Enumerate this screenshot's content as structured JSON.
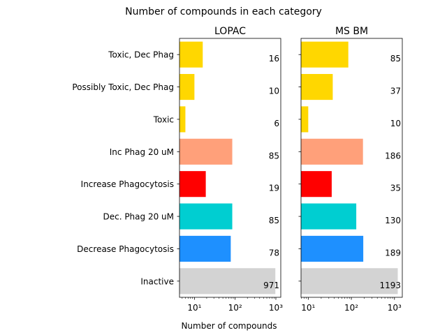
{
  "chart_data": {
    "type": "bar",
    "orientation": "horizontal",
    "suptitle": "Number of compounds in each category",
    "xlabel": "Number of compounds",
    "x_scale": "log",
    "x_tick_labels": [
      "10^1",
      "10^2",
      "10^3"
    ],
    "categories": [
      "Toxic, Dec Phag",
      "Possibly Toxic, Dec Phag",
      "Toxic",
      "Inc Phag 20 uM",
      "Increase Phagocytosis",
      "Dec. Phag 20 uM",
      "Decrease Phagocytosis",
      "Inactive"
    ],
    "bar_colors": [
      "#ffd700",
      "#ffd700",
      "#ffd700",
      "#ffa07a",
      "#ff0000",
      "#00ced1",
      "#1e90ff",
      "#d3d3d3"
    ],
    "panels": [
      {
        "title": "LOPAC",
        "values": [
          16,
          10,
          6,
          85,
          19,
          85,
          78,
          971
        ],
        "labels": [
          "16",
          "10",
          "6",
          "85",
          "19",
          "85",
          "78",
          "971"
        ],
        "xlim": [
          4.3,
          1320
        ]
      },
      {
        "title": "MS BM",
        "values": [
          85,
          37,
          10,
          186,
          35,
          130,
          189,
          1193
        ],
        "labels": [
          "85",
          "37",
          "10",
          "186",
          "35",
          "130",
          "189",
          "1193"
        ],
        "xlim": [
          6.8,
          1520
        ]
      }
    ]
  }
}
